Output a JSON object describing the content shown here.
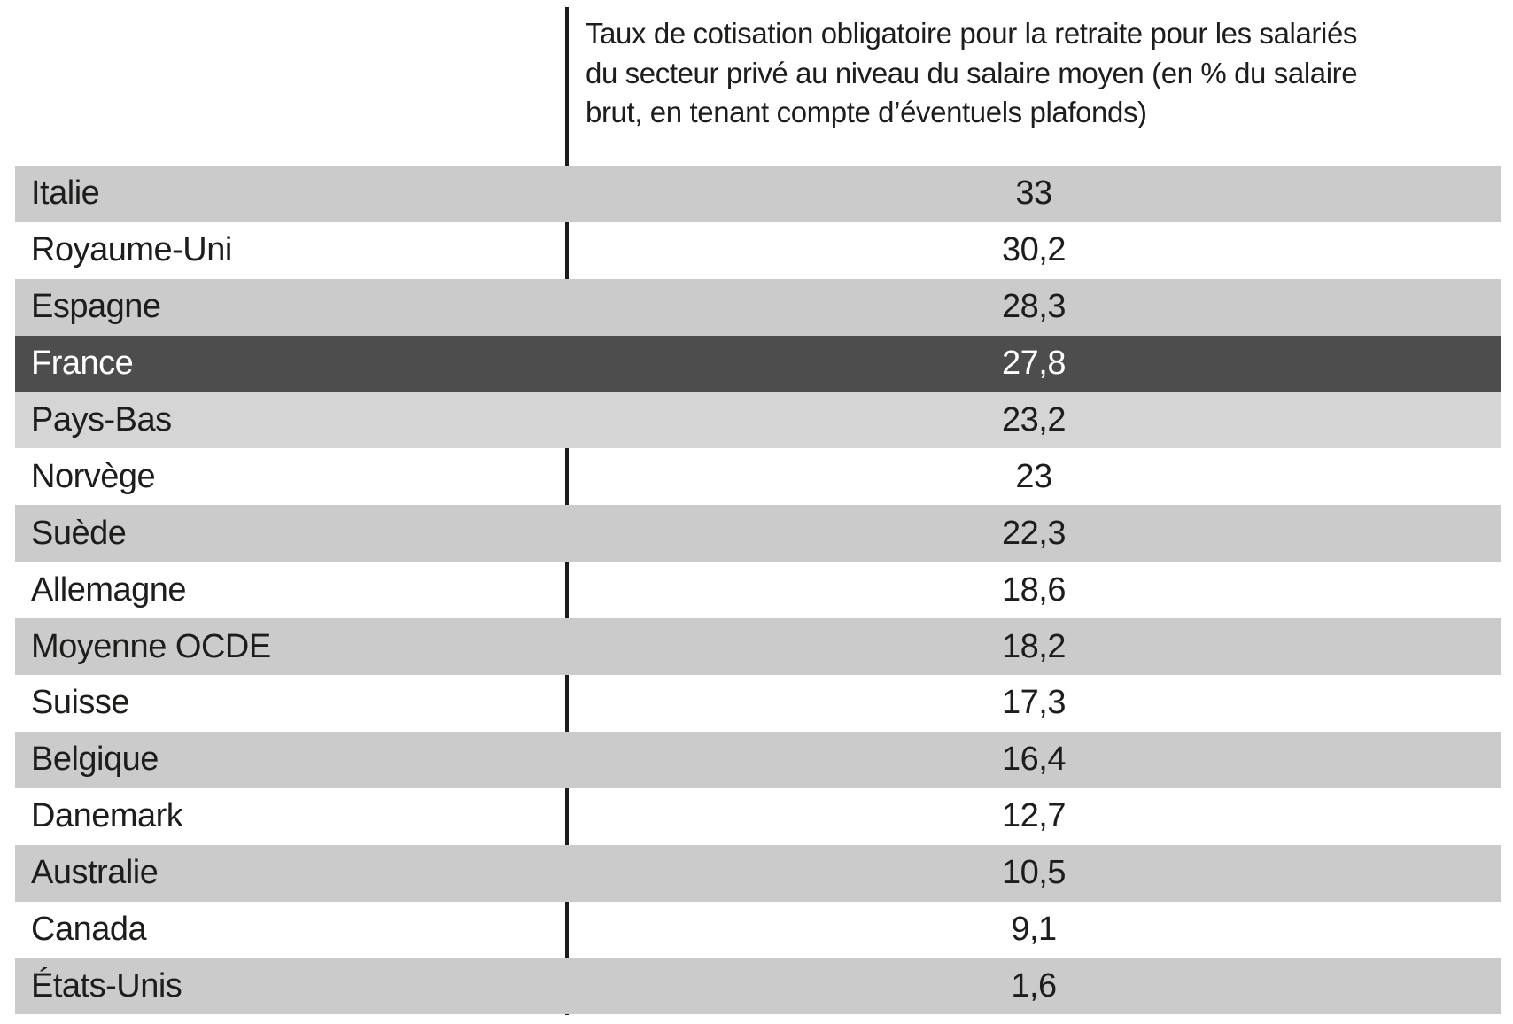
{
  "colors": {
    "stripe_gray": "#cbcbcb",
    "stripe_gray_light": "#d5d5d5",
    "highlight_dark": "#4d4d4d",
    "text_dark": "#1d1d1b",
    "text_light": "#ffffff",
    "divider_black": "#1c1c1c"
  },
  "header": {
    "lines": [
      "Taux de cotisation obligatoire pour la retraite pour les salariés",
      "du secteur privé au niveau du salaire moyen (en % du salaire",
      "brut, en tenant compte d’éventuels plafonds)"
    ]
  },
  "chart_data": {
    "type": "table",
    "title": "Taux de cotisation obligatoire pour la retraite pour les salariés du secteur privé au niveau du salaire moyen (en % du salaire brut, en tenant compte d’éventuels plafonds)",
    "rows": [
      {
        "label": "Italie",
        "value": "33",
        "value_numeric": 33,
        "bg": "stripe",
        "highlight": false
      },
      {
        "label": "Royaume-Uni",
        "value": "30,2",
        "value_numeric": 30.2,
        "bg": "plain",
        "highlight": false
      },
      {
        "label": "Espagne",
        "value": "28,3",
        "value_numeric": 28.3,
        "bg": "stripe",
        "highlight": false
      },
      {
        "label": "France",
        "value": "27,8",
        "value_numeric": 27.8,
        "bg": "highlight",
        "highlight": true
      },
      {
        "label": "Pays-Bas",
        "value": "23,2",
        "value_numeric": 23.2,
        "bg": "stripe-light",
        "highlight": false
      },
      {
        "label": "Norvège",
        "value": "23",
        "value_numeric": 23,
        "bg": "plain",
        "highlight": false
      },
      {
        "label": "Suède",
        "value": "22,3",
        "value_numeric": 22.3,
        "bg": "stripe",
        "highlight": false
      },
      {
        "label": "Allemagne",
        "value": "18,6",
        "value_numeric": 18.6,
        "bg": "plain",
        "highlight": false
      },
      {
        "label": "Moyenne OCDE",
        "value": "18,2",
        "value_numeric": 18.2,
        "bg": "stripe",
        "highlight": false
      },
      {
        "label": "Suisse",
        "value": "17,3",
        "value_numeric": 17.3,
        "bg": "plain",
        "highlight": false
      },
      {
        "label": "Belgique",
        "value": "16,4",
        "value_numeric": 16.4,
        "bg": "stripe",
        "highlight": false
      },
      {
        "label": "Danemark",
        "value": "12,7",
        "value_numeric": 12.7,
        "bg": "plain",
        "highlight": false
      },
      {
        "label": "Australie",
        "value": "10,5",
        "value_numeric": 10.5,
        "bg": "stripe",
        "highlight": false
      },
      {
        "label": "Canada",
        "value": "9,1",
        "value_numeric": 9.1,
        "bg": "plain",
        "highlight": false
      },
      {
        "label": "États-Unis",
        "value": "1,6",
        "value_numeric": 1.6,
        "bg": "stripe",
        "highlight": false
      }
    ]
  }
}
